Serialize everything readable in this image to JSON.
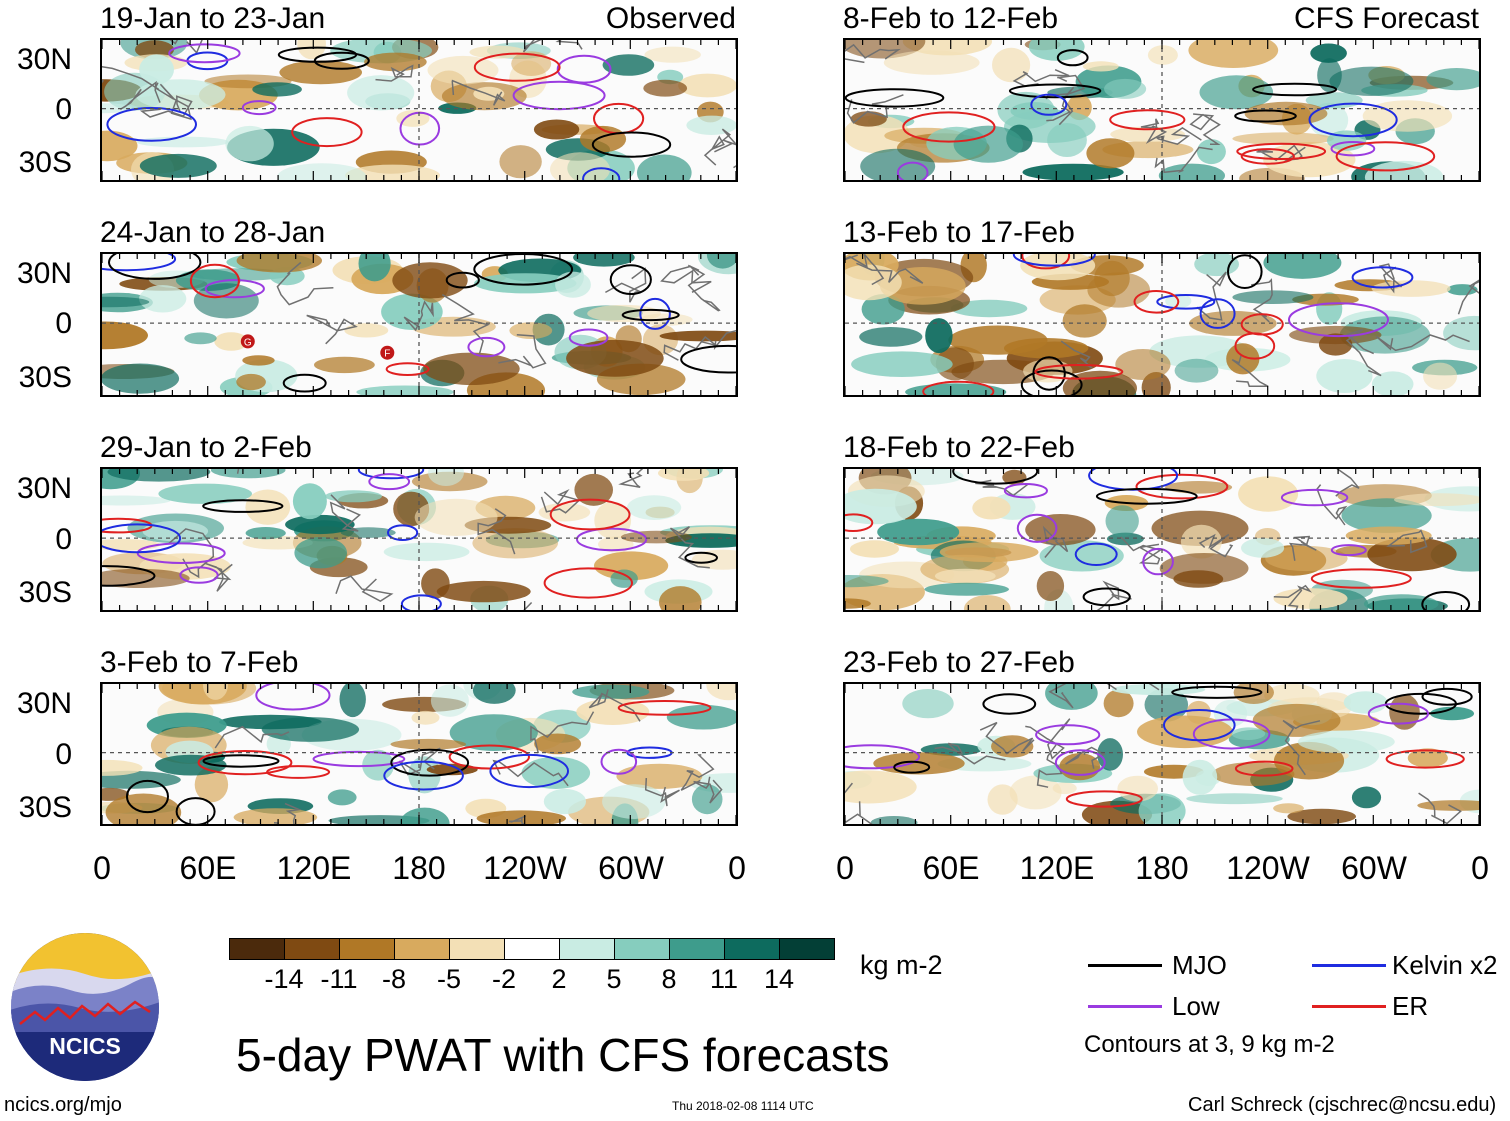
{
  "panels": [
    {
      "title": "19-Jan to 23-Jan",
      "tag": "Observed"
    },
    {
      "title": "24-Jan to 28-Jan",
      "tag": ""
    },
    {
      "title": "29-Jan to 2-Feb",
      "tag": ""
    },
    {
      "title": "3-Feb to 7-Feb",
      "tag": ""
    },
    {
      "title": "8-Feb to 12-Feb",
      "tag": "CFS Forecast"
    },
    {
      "title": "13-Feb to 17-Feb",
      "tag": ""
    },
    {
      "title": "18-Feb to 22-Feb",
      "tag": ""
    },
    {
      "title": "23-Feb to 27-Feb",
      "tag": ""
    }
  ],
  "lat_labels": [
    "30N",
    "0",
    "30S"
  ],
  "lon_labels": [
    "0",
    "60E",
    "120E",
    "180",
    "120W",
    "60W",
    "0"
  ],
  "colorbar": {
    "unit": "kg m-2",
    "labels": [
      "-14",
      "-11",
      "-8",
      "-5",
      "-2",
      "2",
      "5",
      "8",
      "11",
      "14"
    ],
    "colors": [
      "#4b2a0c",
      "#7f4a12",
      "#b07826",
      "#d8aa5e",
      "#f3e0b6",
      "#ffffff",
      "#c9ece3",
      "#86cdbe",
      "#3e9c8c",
      "#0d6b5e",
      "#033f36"
    ]
  },
  "legend": {
    "items": [
      {
        "label": "MJO",
        "color": "#000000"
      },
      {
        "label": "Kelvin x2",
        "color": "#1f2ce0"
      },
      {
        "label": "Low",
        "color": "#9a3be0"
      },
      {
        "label": "ER",
        "color": "#e02020"
      }
    ],
    "note": "Contours at 3, 9 kg m-2"
  },
  "logo": {
    "text": "NCICS"
  },
  "main_title": "5-day PWAT with CFS forecasts",
  "footer": {
    "left": "ncics.org/mjo",
    "center": "Thu 2018-02-08 1114 UTC",
    "right": "Carl Schreck (cjschrec@ncsu.edu)"
  },
  "markers": [
    {
      "panel": 1,
      "label": "G"
    },
    {
      "panel": 1,
      "label": "F"
    }
  ]
}
